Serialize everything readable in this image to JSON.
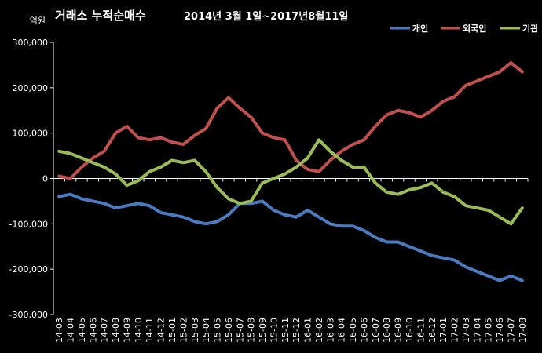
{
  "chart_data": {
    "type": "line",
    "title": "거래소 누적순매수",
    "subtitle": "2014년 3월 1일~2017년8월11일",
    "ylabel": "억원",
    "ylim": [
      -300000,
      300000
    ],
    "yticks": [
      300000,
      200000,
      100000,
      0,
      -100000,
      -200000,
      -300000
    ],
    "ytick_labels": [
      "300,000",
      "200,000",
      "100,000",
      "0",
      "-100,000",
      "-200,000",
      "-300,000"
    ],
    "categories": [
      "14-03",
      "14-04",
      "14-05",
      "14-06",
      "14-07",
      "14-08",
      "14-09",
      "14-10",
      "14-11",
      "14-12",
      "15-01",
      "15-02",
      "15-03",
      "15-04",
      "15-05",
      "15-06",
      "15-07",
      "15-08",
      "15-09",
      "15-10",
      "15-11",
      "15-12",
      "16-01",
      "16-02",
      "16-03",
      "16-04",
      "16-05",
      "16-06",
      "16-07",
      "16-08",
      "16-09",
      "16-10",
      "16-11",
      "16-12",
      "17-01",
      "17-02",
      "17-03",
      "17-04",
      "17-05",
      "17-06",
      "17-07",
      "17-08"
    ],
    "legend_position": "top-right",
    "grid": false,
    "series": [
      {
        "name": "개인",
        "color": "#4a7bc0",
        "values": [
          -40000,
          -35000,
          -45000,
          -50000,
          -55000,
          -65000,
          -60000,
          -55000,
          -60000,
          -75000,
          -80000,
          -85000,
          -95000,
          -100000,
          -95000,
          -80000,
          -55000,
          -55000,
          -50000,
          -70000,
          -80000,
          -85000,
          -70000,
          -85000,
          -100000,
          -105000,
          -105000,
          -115000,
          -130000,
          -140000,
          -140000,
          -150000,
          -160000,
          -170000,
          -175000,
          -180000,
          -195000,
          -205000,
          -215000,
          -225000,
          -215000,
          -225000
        ]
      },
      {
        "name": "외국인",
        "color": "#c0504d",
        "values": [
          5000,
          0,
          25000,
          45000,
          60000,
          100000,
          115000,
          90000,
          85000,
          90000,
          80000,
          75000,
          95000,
          110000,
          155000,
          178000,
          155000,
          135000,
          100000,
          90000,
          85000,
          40000,
          20000,
          15000,
          40000,
          60000,
          75000,
          85000,
          115000,
          140000,
          150000,
          145000,
          135000,
          150000,
          170000,
          180000,
          205000,
          215000,
          225000,
          235000,
          255000,
          235000
        ]
      },
      {
        "name": "기관",
        "color": "#9bbb59",
        "values": [
          60000,
          55000,
          45000,
          35000,
          25000,
          10000,
          -15000,
          -5000,
          15000,
          25000,
          40000,
          35000,
          40000,
          15000,
          -20000,
          -45000,
          -55000,
          -50000,
          -10000,
          0,
          10000,
          25000,
          45000,
          85000,
          60000,
          40000,
          25000,
          25000,
          -10000,
          -30000,
          -35000,
          -25000,
          -20000,
          -10000,
          -30000,
          -40000,
          -60000,
          -65000,
          -70000,
          -85000,
          -100000,
          -65000
        ]
      }
    ]
  }
}
